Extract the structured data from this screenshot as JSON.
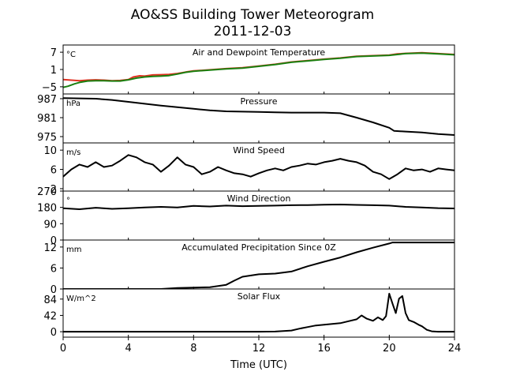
{
  "title": "AO&SS Building Tower Meteorogram",
  "subtitle": "2011-12-03",
  "chart_data": {
    "type": "line",
    "xlabel": "Time (UTC)",
    "xlim": [
      0,
      24
    ],
    "x_ticks": [
      0,
      4,
      8,
      12,
      16,
      20,
      24
    ],
    "panels": [
      {
        "name": "temperature",
        "title": "Air and Dewpoint Temperature",
        "unit": "°C",
        "ylim": [
          -7.5,
          9.5
        ],
        "y_ticks": [
          -5,
          1,
          7
        ],
        "series": [
          {
            "color": "#e03020",
            "points": [
              [
                0,
                -2.5
              ],
              [
                0.5,
                -2.7
              ],
              [
                1,
                -2.9
              ],
              [
                1.5,
                -2.7
              ],
              [
                2,
                -2.6
              ],
              [
                2.5,
                -2.7
              ],
              [
                3,
                -2.9
              ],
              [
                3.5,
                -2.8
              ],
              [
                4,
                -2.5
              ],
              [
                4.3,
                -1.6
              ],
              [
                4.7,
                -1.2
              ],
              [
                5,
                -1.3
              ],
              [
                5.5,
                -0.9
              ],
              [
                6,
                -0.8
              ],
              [
                6.5,
                -0.7
              ],
              [
                7,
                -0.4
              ],
              [
                7.5,
                0.1
              ],
              [
                8,
                0.5
              ],
              [
                9,
                0.9
              ],
              [
                10,
                1.3
              ],
              [
                11,
                1.6
              ],
              [
                12,
                2.2
              ],
              [
                13,
                2.8
              ],
              [
                14,
                3.6
              ],
              [
                15,
                4.1
              ],
              [
                16,
                4.6
              ],
              [
                17,
                5.0
              ],
              [
                18,
                5.6
              ],
              [
                19,
                5.8
              ],
              [
                20,
                6.0
              ],
              [
                20.5,
                6.4
              ],
              [
                21,
                6.6
              ],
              [
                22,
                6.8
              ],
              [
                23,
                6.5
              ],
              [
                24,
                6.2
              ]
            ]
          },
          {
            "color": "#1a8010",
            "points": [
              [
                0,
                -5.2
              ],
              [
                0.3,
                -4.8
              ],
              [
                0.7,
                -4.0
              ],
              [
                1,
                -3.5
              ],
              [
                1.5,
                -3.0
              ],
              [
                2,
                -2.9
              ],
              [
                2.5,
                -2.9
              ],
              [
                3,
                -3.0
              ],
              [
                3.5,
                -3.0
              ],
              [
                4,
                -2.6
              ],
              [
                4.5,
                -2.0
              ],
              [
                5,
                -1.6
              ],
              [
                5.5,
                -1.4
              ],
              [
                6,
                -1.3
              ],
              [
                6.5,
                -1.1
              ],
              [
                7,
                -0.6
              ],
              [
                7.5,
                0.0
              ],
              [
                8,
                0.4
              ],
              [
                9,
                0.8
              ],
              [
                10,
                1.2
              ],
              [
                11,
                1.5
              ],
              [
                12,
                2.1
              ],
              [
                13,
                2.7
              ],
              [
                14,
                3.5
              ],
              [
                15,
                4.0
              ],
              [
                16,
                4.5
              ],
              [
                17,
                4.9
              ],
              [
                18,
                5.5
              ],
              [
                19,
                5.7
              ],
              [
                20,
                5.9
              ],
              [
                20.5,
                6.2
              ],
              [
                21,
                6.5
              ],
              [
                22,
                6.7
              ],
              [
                23,
                6.4
              ],
              [
                24,
                6.1
              ]
            ]
          }
        ]
      },
      {
        "name": "pressure",
        "title": "Pressure",
        "unit": "hPa",
        "ylim": [
          973,
          988.5
        ],
        "y_ticks": [
          975,
          981,
          987
        ],
        "series": [
          {
            "color": "#000000",
            "points": [
              [
                0,
                987.2
              ],
              [
                1,
                987.1
              ],
              [
                2,
                987.0
              ],
              [
                3,
                986.6
              ],
              [
                4,
                986.0
              ],
              [
                5,
                985.4
              ],
              [
                6,
                984.8
              ],
              [
                7,
                984.3
              ],
              [
                8,
                983.8
              ],
              [
                9,
                983.3
              ],
              [
                10,
                983.0
              ],
              [
                11,
                982.9
              ],
              [
                12,
                982.8
              ],
              [
                13,
                982.7
              ],
              [
                14,
                982.6
              ],
              [
                15,
                982.6
              ],
              [
                16,
                982.6
              ],
              [
                17,
                982.4
              ],
              [
                18,
                981.0
              ],
              [
                19,
                979.5
              ],
              [
                20,
                977.8
              ],
              [
                20.3,
                976.8
              ],
              [
                21,
                976.6
              ],
              [
                22,
                976.3
              ],
              [
                23,
                975.8
              ],
              [
                24,
                975.5
              ]
            ]
          }
        ]
      },
      {
        "name": "wind-speed",
        "title": "Wind Speed",
        "unit": "m/s",
        "ylim": [
          1.5,
          11.5
        ],
        "y_ticks": [
          2,
          6,
          10
        ],
        "series": [
          {
            "color": "#000000",
            "points": [
              [
                0,
                4.5
              ],
              [
                0.5,
                6.0
              ],
              [
                1,
                7.0
              ],
              [
                1.5,
                6.5
              ],
              [
                2,
                7.5
              ],
              [
                2.5,
                6.5
              ],
              [
                3,
                6.8
              ],
              [
                3.5,
                7.8
              ],
              [
                4,
                9.0
              ],
              [
                4.5,
                8.5
              ],
              [
                5,
                7.5
              ],
              [
                5.5,
                7.0
              ],
              [
                6,
                5.5
              ],
              [
                6.5,
                6.8
              ],
              [
                7,
                8.5
              ],
              [
                7.5,
                7.0
              ],
              [
                8,
                6.5
              ],
              [
                8.5,
                5.0
              ],
              [
                9,
                5.5
              ],
              [
                9.5,
                6.5
              ],
              [
                10,
                5.8
              ],
              [
                10.5,
                5.2
              ],
              [
                11,
                5.0
              ],
              [
                11.5,
                4.5
              ],
              [
                12,
                5.2
              ],
              [
                12.5,
                5.8
              ],
              [
                13,
                6.2
              ],
              [
                13.5,
                5.8
              ],
              [
                14,
                6.5
              ],
              [
                14.5,
                6.8
              ],
              [
                15,
                7.2
              ],
              [
                15.5,
                7.0
              ],
              [
                16,
                7.5
              ],
              [
                16.5,
                7.8
              ],
              [
                17,
                8.2
              ],
              [
                17.5,
                7.8
              ],
              [
                18,
                7.5
              ],
              [
                18.5,
                6.8
              ],
              [
                19,
                5.5
              ],
              [
                19.5,
                5.0
              ],
              [
                20,
                4.0
              ],
              [
                20.5,
                5.0
              ],
              [
                21,
                6.2
              ],
              [
                21.5,
                5.8
              ],
              [
                22,
                6.0
              ],
              [
                22.5,
                5.5
              ],
              [
                23,
                6.2
              ],
              [
                23.5,
                6.0
              ],
              [
                24,
                5.8
              ]
            ]
          }
        ]
      },
      {
        "name": "wind-direction",
        "title": "Wind Direction",
        "unit": "°",
        "ylim": [
          0,
          270
        ],
        "y_ticks": [
          0,
          90,
          180,
          270
        ],
        "series": [
          {
            "color": "#000000",
            "points": [
              [
                0,
                175
              ],
              [
                1,
                170
              ],
              [
                2,
                178
              ],
              [
                3,
                172
              ],
              [
                4,
                175
              ],
              [
                5,
                180
              ],
              [
                6,
                183
              ],
              [
                7,
                180
              ],
              [
                8,
                188
              ],
              [
                9,
                185
              ],
              [
                10,
                190
              ],
              [
                11,
                187
              ],
              [
                12,
                188
              ],
              [
                13,
                190
              ],
              [
                14,
                192
              ],
              [
                15,
                193
              ],
              [
                16,
                195
              ],
              [
                17,
                196
              ],
              [
                18,
                194
              ],
              [
                19,
                192
              ],
              [
                20,
                190
              ],
              [
                21,
                183
              ],
              [
                22,
                180
              ],
              [
                23,
                176
              ],
              [
                24,
                174
              ]
            ]
          }
        ]
      },
      {
        "name": "precipitation",
        "title": "Accumulated Precipitation Since 0Z",
        "unit": "mm",
        "ylim": [
          0,
          14
        ],
        "y_ticks": [
          0,
          6,
          12
        ],
        "series": [
          {
            "color": "#000000",
            "points": [
              [
                0,
                0
              ],
              [
                4,
                0
              ],
              [
                6,
                0
              ],
              [
                7,
                0.3
              ],
              [
                8,
                0.4
              ],
              [
                9,
                0.5
              ],
              [
                10,
                1.2
              ],
              [
                10.5,
                2.4
              ],
              [
                11,
                3.5
              ],
              [
                12,
                4.2
              ],
              [
                13,
                4.4
              ],
              [
                14,
                5.0
              ],
              [
                15,
                6.5
              ],
              [
                16,
                7.8
              ],
              [
                17,
                9.0
              ],
              [
                18,
                10.5
              ],
              [
                19,
                11.8
              ],
              [
                20,
                13.0
              ],
              [
                20.2,
                13.3
              ],
              [
                24,
                13.3
              ]
            ]
          }
        ]
      },
      {
        "name": "solar-flux",
        "title": "Solar Flux",
        "unit": "W/m^2",
        "ylim": [
          -14,
          110
        ],
        "y_ticks": [
          0,
          42,
          84
        ],
        "series": [
          {
            "color": "#000000",
            "points": [
              [
                0,
                0
              ],
              [
                5,
                0
              ],
              [
                10,
                0
              ],
              [
                12,
                0
              ],
              [
                13,
                0.5
              ],
              [
                14,
                3
              ],
              [
                14.5,
                8
              ],
              [
                15,
                12
              ],
              [
                15.5,
                16
              ],
              [
                16,
                18
              ],
              [
                16.5,
                20
              ],
              [
                17,
                22
              ],
              [
                17.5,
                27
              ],
              [
                18,
                32
              ],
              [
                18.3,
                42
              ],
              [
                18.6,
                34
              ],
              [
                19,
                28
              ],
              [
                19.3,
                37
              ],
              [
                19.6,
                30
              ],
              [
                19.8,
                40
              ],
              [
                20,
                98
              ],
              [
                20.2,
                72
              ],
              [
                20.4,
                48
              ],
              [
                20.6,
                85
              ],
              [
                20.8,
                92
              ],
              [
                21,
                48
              ],
              [
                21.2,
                30
              ],
              [
                21.5,
                25
              ],
              [
                21.8,
                18
              ],
              [
                22,
                14
              ],
              [
                22.3,
                5
              ],
              [
                22.6,
                1
              ],
              [
                23,
                0
              ],
              [
                24,
                0
              ]
            ]
          }
        ]
      }
    ]
  }
}
